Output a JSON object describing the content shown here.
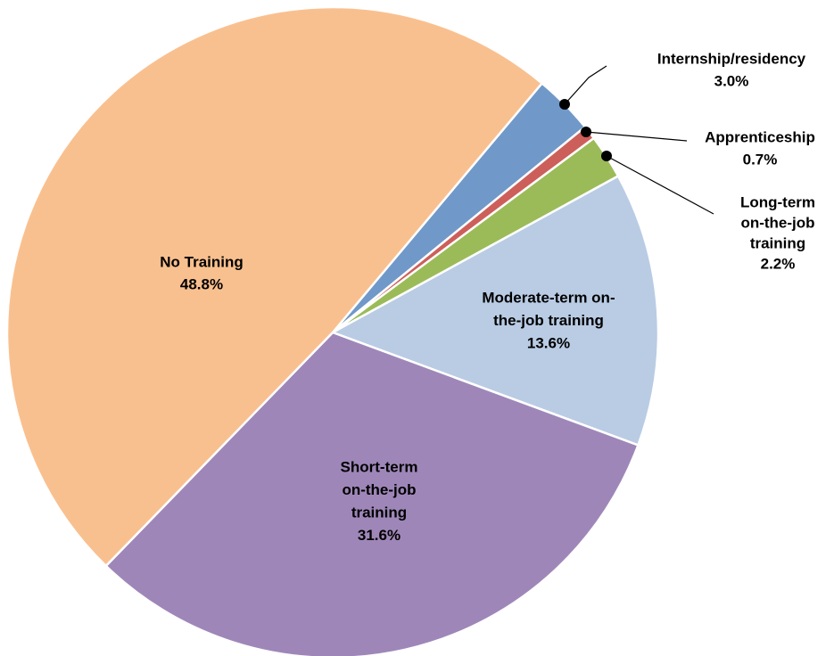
{
  "chart_data": {
    "type": "pie",
    "categories": [
      [
        "Internship/residency"
      ],
      [
        "Apprenticeship"
      ],
      [
        "Long-term",
        "on-the-job",
        "training"
      ],
      [
        "Moderate-term on-",
        "the-job training"
      ],
      [
        "Short-term",
        "on-the-job",
        "training"
      ],
      [
        "No Training"
      ]
    ],
    "values": [
      3.0,
      0.7,
      2.2,
      13.6,
      31.6,
      48.8
    ],
    "value_labels": [
      "3.0%",
      "0.7%",
      "2.2%",
      "13.6%",
      "31.6%",
      "48.8%"
    ],
    "colors": [
      "#7099c9",
      "#cd5f5b",
      "#9bbb59",
      "#b9cce4",
      "#9e87b8",
      "#f9c08f"
    ]
  }
}
